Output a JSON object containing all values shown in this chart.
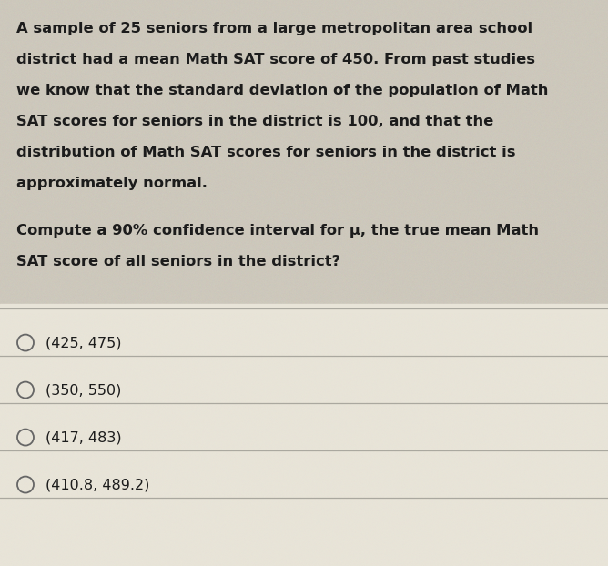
{
  "background_color": "#cdc8bc",
  "choices_bg_color": "#e8e4d8",
  "fig_width": 6.68,
  "fig_height": 6.22,
  "paragraph1_lines": [
    "A sample of 25 seniors from a large metropolitan area school",
    "district had a mean Math SAT score of 450. From past studies",
    "we know that the standard deviation of the population of Math",
    "SAT scores for seniors in the district is 100, and that the",
    "distribution of Math SAT scores for seniors in the district is",
    "approximately normal."
  ],
  "paragraph2_line1": "Compute a 90% confidence interval for μ, the true mean Math",
  "paragraph2_line2": "SAT score of all seniors in the district?",
  "choices": [
    "(425, 475)",
    "(350, 550)",
    "(417, 483)",
    "(410.8, 489.2)"
  ],
  "text_color": "#1c1c1c",
  "divider_color": "#aaa89f",
  "circle_color": "#666666",
  "font_size_body": 11.8,
  "font_size_choice": 11.5
}
